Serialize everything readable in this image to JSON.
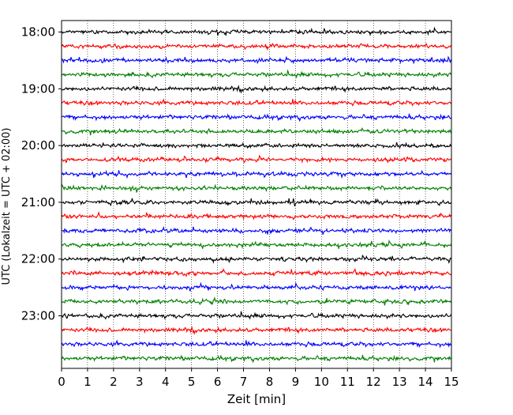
{
  "chart_data": {
    "type": "line",
    "title": "",
    "xlabel": "Zeit  [min]",
    "ylabel": "UTC (Lokalzeit = UTC + 02:00)",
    "xlim": [
      0,
      15
    ],
    "x_ticks": [
      "0",
      "1",
      "2",
      "3",
      "4",
      "5",
      "6",
      "7",
      "8",
      "9",
      "10",
      "11",
      "12",
      "13",
      "14",
      "15"
    ],
    "y_tick_labels": [
      "18:00",
      "19:00",
      "20:00",
      "21:00",
      "22:00",
      "23:00"
    ],
    "trace_start_times": [
      "18:00",
      "18:15",
      "18:30",
      "18:45",
      "19:00",
      "19:15",
      "19:30",
      "19:45",
      "20:00",
      "20:15",
      "20:30",
      "20:45",
      "21:00",
      "21:15",
      "21:30",
      "21:45",
      "22:00",
      "22:15",
      "22:30",
      "22:45",
      "23:00",
      "23:15",
      "23:30",
      "23:45"
    ],
    "trace_duration_min": 15,
    "trace_colors": [
      "#000000",
      "#ff0000",
      "#0000ff",
      "#007f00"
    ],
    "grid": "vertical dotted lines at each minute",
    "legend": "none"
  }
}
